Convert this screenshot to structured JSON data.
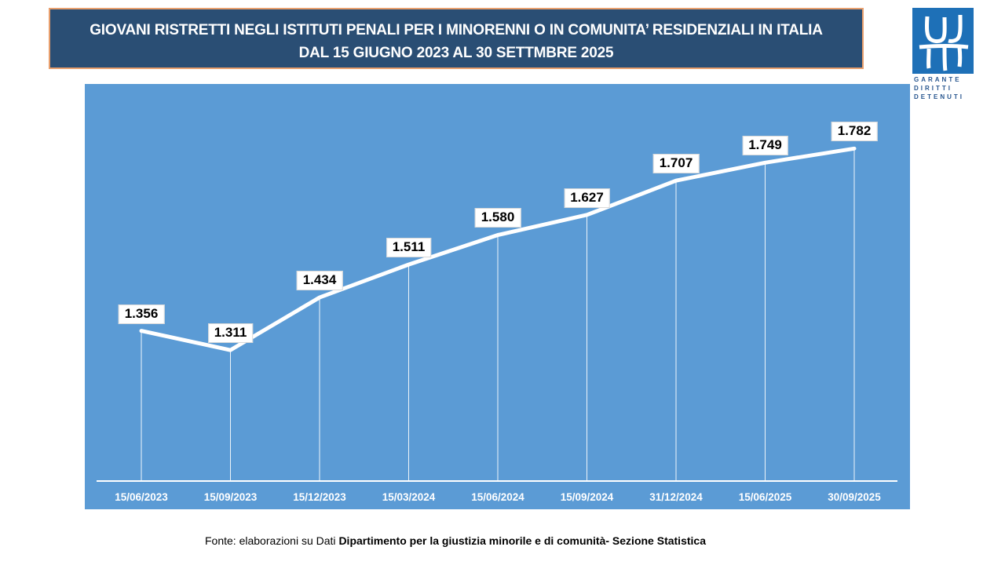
{
  "title": {
    "line1": "GIOVANI RISTRETTI NEGLI ISTITUTI PENALI PER I MINORENNI O IN COMUNITA’ RESIDENZIALI IN ITALIA",
    "line2": "DAL 15 GIUGNO 2023 AL 30 SETTMBRE 2025"
  },
  "logo": {
    "lines": [
      "GARANTE",
      "DIRITTI",
      "DETENUTI"
    ],
    "square_color": "#1e70b7",
    "text_color": "#28568f"
  },
  "chart_data": {
    "type": "line",
    "title": "Giovani ristretti negli istituti penali per i minorenni o in comunità residenziali in Italia",
    "categories": [
      "15/06/2023",
      "15/09/2023",
      "15/12/2023",
      "15/03/2024",
      "15/06/2024",
      "15/09/2024",
      "31/12/2024",
      "15/06/2025",
      "30/09/2025"
    ],
    "values": [
      1356,
      1311,
      1434,
      1511,
      1580,
      1627,
      1707,
      1749,
      1782
    ],
    "labels": [
      "1.356",
      "1.311",
      "1.434",
      "1.511",
      "1.580",
      "1.627",
      "1.707",
      "1.749",
      "1.782"
    ],
    "xlabel": "",
    "ylabel": "",
    "ylim": [
      1005,
      1933
    ],
    "grid": "drop-lines",
    "legend": "none",
    "line_color": "#ffffff",
    "plot_bg": "#5b9bd5",
    "label_box_bg": "#ffffff",
    "label_text_color": "#000000"
  },
  "footer": {
    "normal": "Fonte: elaborazioni su Dati ",
    "bold": "Dipartimento per la giustizia minorile e di comunità- Sezione Statistica"
  }
}
